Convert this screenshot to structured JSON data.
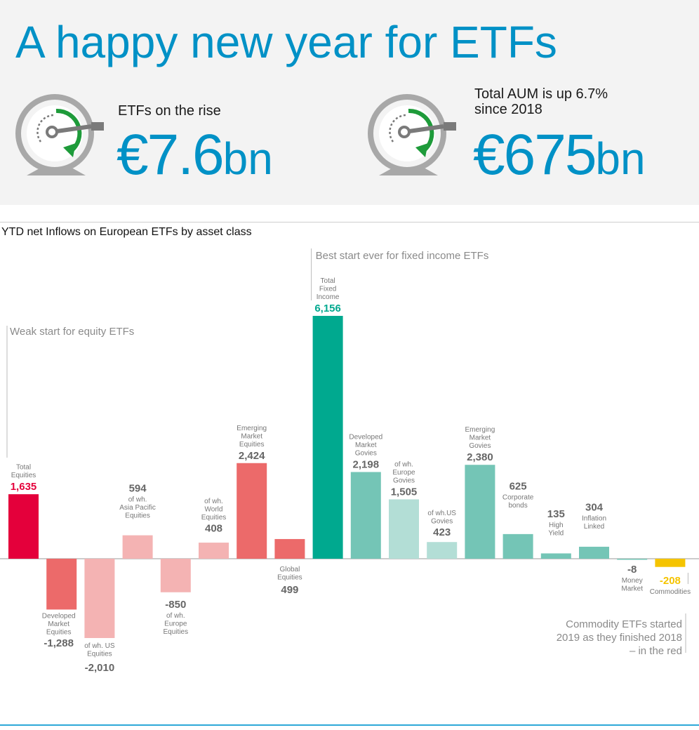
{
  "header": {
    "title": "A happy new year for ETFs",
    "kpi1": {
      "label": "ETFs on the rise",
      "value": "€7.6",
      "unit": "bn"
    },
    "kpi2": {
      "label_line1": "Total AUM is up 6.7%",
      "label_line2": "since 2018",
      "value": "€675",
      "unit": "bn"
    }
  },
  "colors": {
    "accent_blue": "#0091c6",
    "equity_dark": "#e4003b",
    "equity_mid": "#ec6a6a",
    "equity_light": "#f4b3b3",
    "fixed_dark": "#00a98f",
    "fixed_mid": "#74c5b6",
    "fixed_light": "#b3ded6",
    "commodity": "#f5c400",
    "gauge_green": "#1e9b3a",
    "gauge_gray": "#a8a8a8"
  },
  "chart_data": {
    "type": "bar",
    "title": "YTD net Inflows on European ETFs by asset class",
    "categories": [
      "Total Equities",
      "Developed Market Equities",
      "of wh. US Equities",
      "of wh. Asia Pacific Equities",
      "of wh. Europe Equities",
      "of wh. World Equities",
      "Emerging Market Equities",
      "Global Equities",
      "Total Fixed Income",
      "Developed Market Govies",
      "of wh. Europe Govies",
      "of wh.US Govies",
      "Emerging Market Govies",
      "Corporate bonds",
      "High Yield",
      "Inflation Linked",
      "Money Market",
      "Commodities"
    ],
    "values": [
      1635,
      -1288,
      -2010,
      594,
      -850,
      408,
      2424,
      499,
      6156,
      2198,
      1505,
      423,
      2380,
      625,
      135,
      304,
      -8,
      -208
    ],
    "value_labels": [
      "1,635",
      "-1,288",
      "-2,010",
      "594",
      "-850",
      "408",
      "2,424",
      "499",
      "6,156",
      "2,198",
      "1,505",
      "423",
      "2,380",
      "625",
      "135",
      "304",
      "-8",
      "-208"
    ],
    "label_lines": [
      [
        "Total",
        "Equities"
      ],
      [
        "Developed",
        "Market",
        "Equities"
      ],
      [
        "of wh. US",
        "Equities"
      ],
      [
        "of wh.",
        "Asia Pacific",
        "Equities"
      ],
      [
        "of wh.",
        "Europe",
        "Equities"
      ],
      [
        "of wh.",
        "World",
        "Equities"
      ],
      [
        "Emerging",
        "Market",
        "Equities"
      ],
      [
        "Global",
        "Equities"
      ],
      [
        "Total",
        "Fixed",
        "Income"
      ],
      [
        "Developed",
        "Market",
        "Govies"
      ],
      [
        "of wh.",
        "Europe",
        "Govies"
      ],
      [
        "of wh.US",
        "Govies"
      ],
      [
        "Emerging",
        "Market",
        "Govies"
      ],
      [
        "Corporate",
        "bonds"
      ],
      [
        "High",
        "Yield"
      ],
      [
        "Inflation",
        "Linked"
      ],
      [
        "Money",
        "Market"
      ],
      [
        "Commodities"
      ]
    ],
    "colors": [
      "#e4003b",
      "#ec6a6a",
      "#f4b3b3",
      "#f4b3b3",
      "#f4b3b3",
      "#f4b3b3",
      "#ec6a6a",
      "#ec6a6a",
      "#00a98f",
      "#74c5b6",
      "#b3ded6",
      "#b3ded6",
      "#74c5b6",
      "#74c5b6",
      "#74c5b6",
      "#74c5b6",
      "#74c5b6",
      "#f5c400"
    ],
    "value_colors": [
      "#e4003b",
      "#666666",
      "#666666",
      "#666666",
      "#666666",
      "#666666",
      "#666666",
      "#666666",
      "#00a98f",
      "#666666",
      "#666666",
      "#666666",
      "#666666",
      "#666666",
      "#666666",
      "#666666",
      "#666666",
      "#f5c400"
    ],
    "annotations": [
      "Weak start for equity ETFs",
      "Best start ever for fixed income ETFs",
      "Commodity ETFs started 2019 as they finished 2018 – in the red"
    ],
    "annotation_lines": {
      "commodity": [
        "Commodity ETFs started",
        "2019 as they finished 2018",
        "– in the red"
      ]
    }
  }
}
